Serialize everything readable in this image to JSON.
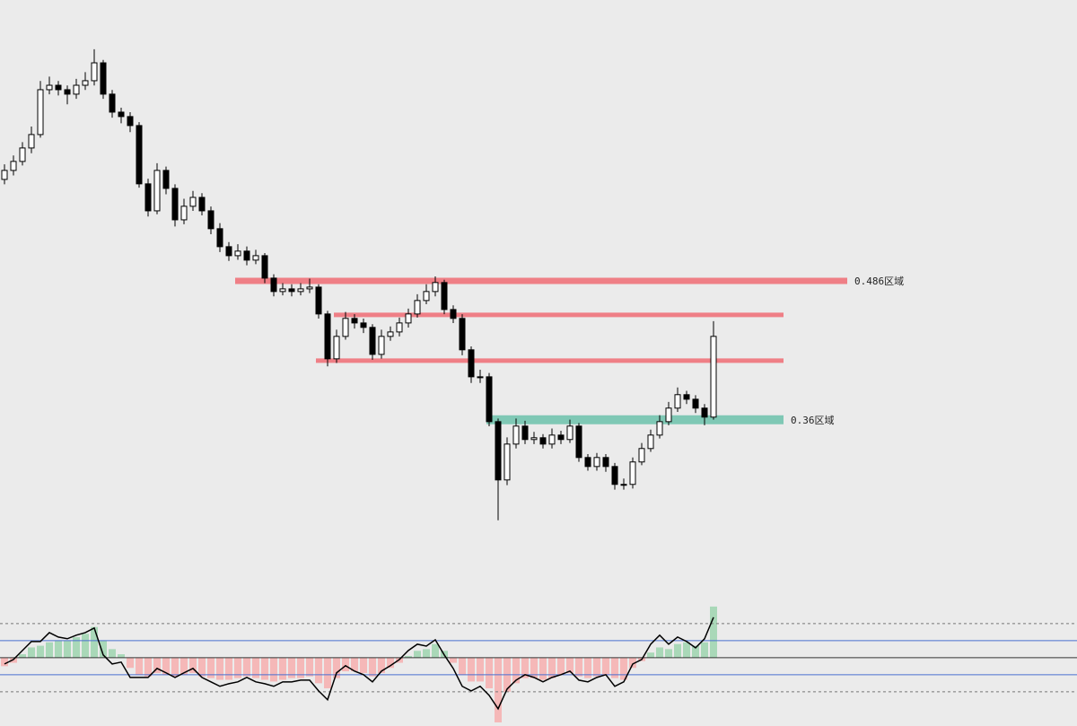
{
  "chart_data": {
    "type": "candlestick",
    "ylim": [
      0.254,
      0.739
    ],
    "up_color": "#ffffff",
    "down_color": "#000000",
    "outline_color": "#000000",
    "candles": [
      [
        0.5774,
        0.591,
        0.573,
        0.5855
      ],
      [
        0.5855,
        0.599,
        0.581,
        0.5936
      ],
      [
        0.5936,
        0.611,
        0.59,
        0.6057
      ],
      [
        0.6057,
        0.625,
        0.601,
        0.6178
      ],
      [
        0.6178,
        0.666,
        0.615,
        0.6582
      ],
      [
        0.6582,
        0.67,
        0.654,
        0.6622
      ],
      [
        0.6622,
        0.666,
        0.653,
        0.6582
      ],
      [
        0.6582,
        0.662,
        0.645,
        0.6542
      ],
      [
        0.6542,
        0.668,
        0.65,
        0.6622
      ],
      [
        0.6622,
        0.674,
        0.658,
        0.6663
      ],
      [
        0.6663,
        0.6946,
        0.662,
        0.6824
      ],
      [
        0.6824,
        0.685,
        0.65,
        0.6542
      ],
      [
        0.6542,
        0.658,
        0.633,
        0.638
      ],
      [
        0.638,
        0.642,
        0.628,
        0.634
      ],
      [
        0.634,
        0.638,
        0.62,
        0.6259
      ],
      [
        0.6259,
        0.629,
        0.57,
        0.5734
      ],
      [
        0.5734,
        0.578,
        0.544,
        0.5491
      ],
      [
        0.5491,
        0.592,
        0.546,
        0.5855
      ],
      [
        0.5855,
        0.589,
        0.564,
        0.5693
      ],
      [
        0.5693,
        0.573,
        0.535,
        0.541
      ],
      [
        0.541,
        0.56,
        0.537,
        0.5532
      ],
      [
        0.5532,
        0.567,
        0.549,
        0.5612
      ],
      [
        0.5612,
        0.565,
        0.545,
        0.5491
      ],
      [
        0.5491,
        0.553,
        0.528,
        0.533
      ],
      [
        0.533,
        0.538,
        0.512,
        0.5168
      ],
      [
        0.5168,
        0.521,
        0.504,
        0.5087
      ],
      [
        0.5087,
        0.519,
        0.505,
        0.5128
      ],
      [
        0.5128,
        0.517,
        0.5,
        0.5047
      ],
      [
        0.5047,
        0.514,
        0.501,
        0.5087
      ],
      [
        0.5087,
        0.511,
        0.484,
        0.4885
      ],
      [
        0.4885,
        0.492,
        0.472,
        0.4764
      ],
      [
        0.4764,
        0.484,
        0.473,
        0.4788
      ],
      [
        0.4788,
        0.483,
        0.472,
        0.4764
      ],
      [
        0.4764,
        0.484,
        0.473,
        0.4788
      ],
      [
        0.4788,
        0.488,
        0.475,
        0.4804
      ],
      [
        0.4804,
        0.483,
        0.452,
        0.4562
      ],
      [
        0.4562,
        0.459,
        0.409,
        0.4158
      ],
      [
        0.4158,
        0.442,
        0.412,
        0.436
      ],
      [
        0.436,
        0.458,
        0.433,
        0.4522
      ],
      [
        0.4522,
        0.456,
        0.443,
        0.4481
      ],
      [
        0.4481,
        0.452,
        0.439,
        0.4441
      ],
      [
        0.4441,
        0.447,
        0.415,
        0.4198
      ],
      [
        0.4198,
        0.442,
        0.416,
        0.436
      ],
      [
        0.436,
        0.445,
        0.432,
        0.44
      ],
      [
        0.44,
        0.453,
        0.436,
        0.4481
      ],
      [
        0.4481,
        0.461,
        0.444,
        0.4562
      ],
      [
        0.4562,
        0.474,
        0.453,
        0.4683
      ],
      [
        0.4683,
        0.483,
        0.465,
        0.4764
      ],
      [
        0.4764,
        0.49,
        0.472,
        0.4845
      ],
      [
        0.4845,
        0.487,
        0.456,
        0.4602
      ],
      [
        0.4602,
        0.464,
        0.448,
        0.4522
      ],
      [
        0.4522,
        0.456,
        0.419,
        0.4239
      ],
      [
        0.4239,
        0.427,
        0.394,
        0.3996
      ],
      [
        0.3996,
        0.406,
        0.394,
        0.3996
      ],
      [
        0.3996,
        0.403,
        0.355,
        0.3592
      ],
      [
        0.3592,
        0.362,
        0.2704,
        0.3067
      ],
      [
        0.3067,
        0.345,
        0.302,
        0.339
      ],
      [
        0.339,
        0.362,
        0.335,
        0.3552
      ],
      [
        0.3552,
        0.36,
        0.339,
        0.3431
      ],
      [
        0.3431,
        0.35,
        0.339,
        0.3447
      ],
      [
        0.3447,
        0.348,
        0.335,
        0.339
      ],
      [
        0.339,
        0.353,
        0.335,
        0.3471
      ],
      [
        0.3471,
        0.351,
        0.339,
        0.3431
      ],
      [
        0.3431,
        0.361,
        0.34,
        0.3552
      ],
      [
        0.3552,
        0.358,
        0.323,
        0.3269
      ],
      [
        0.3269,
        0.33,
        0.315,
        0.3188
      ],
      [
        0.3188,
        0.331,
        0.315,
        0.3269
      ],
      [
        0.3269,
        0.33,
        0.314,
        0.3188
      ],
      [
        0.3188,
        0.322,
        0.298,
        0.3027
      ],
      [
        0.3027,
        0.308,
        0.298,
        0.3027
      ],
      [
        0.3027,
        0.327,
        0.299,
        0.3229
      ],
      [
        0.3229,
        0.34,
        0.32,
        0.335
      ],
      [
        0.335,
        0.352,
        0.332,
        0.3471
      ],
      [
        0.3471,
        0.365,
        0.344,
        0.3592
      ],
      [
        0.3592,
        0.377,
        0.356,
        0.3714
      ],
      [
        0.3714,
        0.39,
        0.368,
        0.3835
      ],
      [
        0.3835,
        0.387,
        0.375,
        0.3794
      ],
      [
        0.3794,
        0.383,
        0.367,
        0.3714
      ],
      [
        0.3714,
        0.375,
        0.356,
        0.3633
      ],
      [
        0.3633,
        0.4497,
        0.361,
        0.436
      ]
    ],
    "zones": [
      {
        "value": 0.486,
        "start": 26,
        "color": "#ef7f86",
        "label": "0.486区域"
      },
      {
        "value": 0.4554,
        "start": 37,
        "color": "#ef7f86"
      },
      {
        "value": 0.4142,
        "start": 35,
        "color": "#ef7f86"
      },
      {
        "value": 0.3609,
        "start": 54,
        "color": "#7fc8b5",
        "label": "0.36区域"
      }
    ],
    "indicator": {
      "ylim": [
        -3.8,
        3.1
      ],
      "levels": [
        {
          "value": 2,
          "color": "#777777",
          "dashed": true
        },
        {
          "value": 1,
          "color": "#4a6fd0",
          "dashed": false
        },
        {
          "value": 0,
          "color": "#333333",
          "dashed": false
        },
        {
          "value": -1,
          "color": "#4a6fd0",
          "dashed": false
        },
        {
          "value": -2,
          "color": "#777777",
          "dashed": true
        }
      ],
      "line_color": "#000000",
      "positive_color": "#a9d8b8",
      "negative_color": "#f5b8b8",
      "line": [
        -0.37,
        -0.11,
        0.42,
        0.95,
        0.95,
        1.47,
        1.21,
        1.11,
        1.32,
        1.47,
        1.74,
        0.16,
        -0.37,
        -0.26,
        -1.16,
        -1.16,
        -1.16,
        -0.63,
        -0.89,
        -1.16,
        -0.89,
        -0.63,
        -1.16,
        -1.42,
        -1.68,
        -1.53,
        -1.42,
        -1.16,
        -1.42,
        -1.53,
        -1.68,
        -1.42,
        -1.42,
        -1.32,
        -1.32,
        -1.95,
        -2.47,
        -0.89,
        -0.47,
        -0.79,
        -1.0,
        -1.42,
        -0.79,
        -0.47,
        -0.11,
        0.42,
        0.79,
        0.68,
        1.05,
        0.16,
        -0.63,
        -1.68,
        -1.95,
        -1.68,
        -2.21,
        -3.0,
        -1.84,
        -1.32,
        -1.0,
        -1.16,
        -1.42,
        -1.16,
        -1.0,
        -0.79,
        -1.32,
        -1.42,
        -1.16,
        -1.0,
        -1.68,
        -1.42,
        -0.37,
        -0.11,
        0.79,
        1.32,
        0.79,
        1.21,
        0.95,
        0.58,
        1.11,
        2.37
      ],
      "histogram": [
        -0.5,
        -0.3,
        0.2,
        0.6,
        0.7,
        0.9,
        1.0,
        1.0,
        1.2,
        1.4,
        1.8,
        1.0,
        0.5,
        0.2,
        -0.6,
        -1.0,
        -1.1,
        -0.9,
        -1.0,
        -1.1,
        -1.0,
        -0.9,
        -1.1,
        -1.2,
        -1.3,
        -1.3,
        -1.2,
        -1.1,
        -1.2,
        -1.3,
        -1.4,
        -1.3,
        -1.2,
        -1.2,
        -1.1,
        -1.5,
        -1.8,
        -1.2,
        -0.8,
        -0.8,
        -0.9,
        -1.1,
        -0.9,
        -0.6,
        -0.3,
        0.1,
        0.4,
        0.5,
        0.8,
        0.4,
        -0.3,
        -1.0,
        -1.4,
        -1.4,
        -1.8,
        -3.8,
        -2.0,
        -1.5,
        -1.2,
        -1.2,
        -1.3,
        -1.2,
        -1.0,
        -0.9,
        -1.1,
        -1.2,
        -1.1,
        -1.0,
        -1.2,
        -1.3,
        -0.6,
        -0.2,
        0.3,
        0.6,
        0.5,
        0.8,
        0.9,
        0.7,
        0.9,
        3.0
      ]
    }
  }
}
